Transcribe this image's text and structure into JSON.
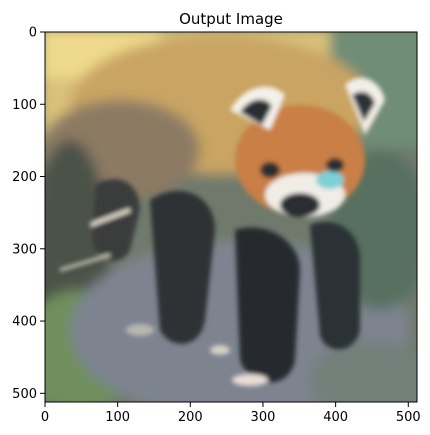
{
  "chart_data": {
    "type": "image",
    "title": "Output Image",
    "xlim": [
      0,
      512
    ],
    "ylim": [
      512,
      0
    ],
    "xticks": [
      0,
      100,
      200,
      300,
      400,
      500
    ],
    "yticks": [
      0,
      100,
      200,
      300,
      400,
      500
    ],
    "grid": false,
    "image_description_colors": {
      "background_top": "#e6cf7a",
      "fur_orange": "#c98a4a",
      "fur_white": "#f4f1ea",
      "dark_legs": "#2b2f34",
      "foliage_green": "#6b8a5a",
      "ground_gray": "#8c8f96"
    }
  }
}
